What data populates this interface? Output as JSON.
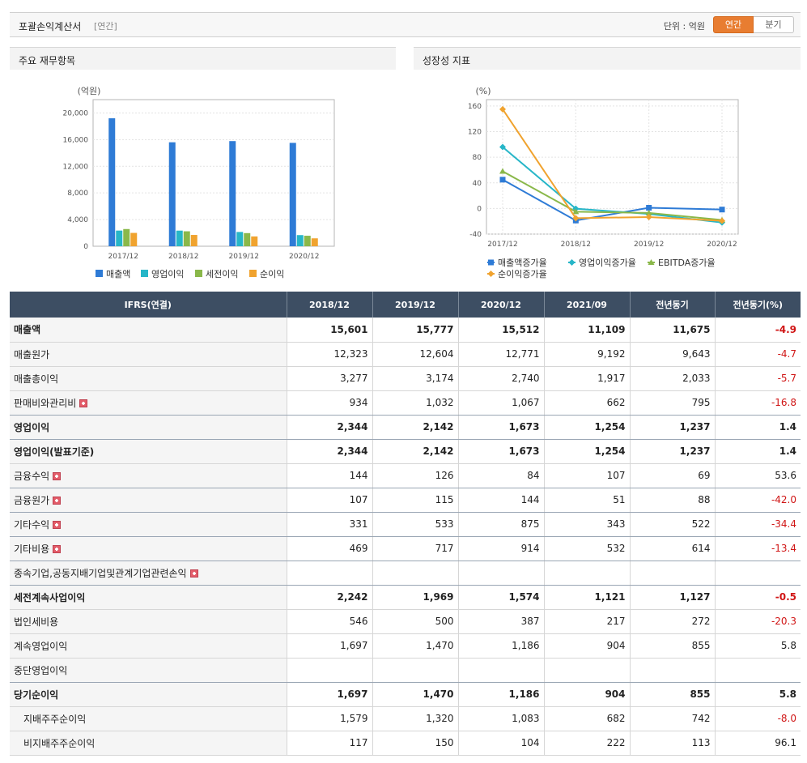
{
  "header": {
    "title": "포괄손익계산서",
    "subtitle": "[연간]",
    "unit_label": "단위 : 억원",
    "toggle": {
      "annual": "연간",
      "quarterly": "분기"
    }
  },
  "panels": {
    "left_title": "주요 재무항목",
    "right_title": "성장성 지표"
  },
  "chart_data": [
    {
      "type": "bar",
      "title": "",
      "ylabel": "(억원)",
      "categories": [
        "2017/12",
        "2018/12",
        "2019/12",
        "2020/12"
      ],
      "ylim": [
        0,
        22000
      ],
      "yticks": [
        0,
        4000,
        8000,
        12000,
        16000,
        20000
      ],
      "ytick_labels": [
        "0",
        "4,000",
        "8,000",
        "12,000",
        "16,000",
        "20,000"
      ],
      "legend_position": "bottom",
      "series": [
        {
          "name": "매출액",
          "color": "#2e7bd6",
          "values": [
            19200,
            15601,
            15777,
            15512
          ]
        },
        {
          "name": "영업이익",
          "color": "#27b6c8",
          "values": [
            2350,
            2344,
            2142,
            1673
          ]
        },
        {
          "name": "세전이익",
          "color": "#8ab84a",
          "values": [
            2580,
            2242,
            1969,
            1574
          ]
        },
        {
          "name": "순이익",
          "color": "#f0a32f",
          "values": [
            2000,
            1697,
            1470,
            1186
          ]
        }
      ]
    },
    {
      "type": "line",
      "title": "",
      "ylabel": "(%)",
      "categories": [
        "2017/12",
        "2018/12",
        "2019/12",
        "2020/12"
      ],
      "ylim": [
        -40,
        170
      ],
      "yticks": [
        -40,
        0,
        40,
        80,
        120,
        160
      ],
      "ytick_labels": [
        "-40",
        "0",
        "40",
        "80",
        "120",
        "160"
      ],
      "legend_position": "bottom",
      "series": [
        {
          "name": "매출액증가율",
          "color": "#2e7bd6",
          "marker": "square",
          "values": [
            45,
            -18.8,
            1.1,
            -1.7
          ]
        },
        {
          "name": "영업이익증가율",
          "color": "#27b6c8",
          "marker": "diamond",
          "values": [
            96,
            -0.3,
            -8.6,
            -21.9
          ]
        },
        {
          "name": "EBITDA증가율",
          "color": "#8ab84a",
          "marker": "triangle",
          "values": [
            58,
            -5,
            -7,
            -18
          ]
        },
        {
          "name": "순이익증가율",
          "color": "#f0a32f",
          "marker": "diamond",
          "values": [
            155,
            -15.1,
            -13.4,
            -19.3
          ]
        }
      ]
    }
  ],
  "table": {
    "headers": [
      "IFRS(연결)",
      "2018/12",
      "2019/12",
      "2020/12",
      "2021/09",
      "전년동기",
      "전년동기(%)"
    ],
    "rows": [
      {
        "label": "매출액",
        "values": [
          "15,601",
          "15,777",
          "15,512",
          "11,109",
          "11,675",
          "-4.9"
        ]
      },
      {
        "label": "매출원가",
        "values": [
          "12,323",
          "12,604",
          "12,771",
          "9,192",
          "9,643",
          "-4.7"
        ]
      },
      {
        "label": "매출총이익",
        "values": [
          "3,277",
          "3,174",
          "2,740",
          "1,917",
          "2,033",
          "-5.7"
        ]
      },
      {
        "label": "판매비와관리비",
        "values": [
          "934",
          "1,032",
          "1,067",
          "662",
          "795",
          "-16.8"
        ]
      },
      {
        "label": "영업이익",
        "values": [
          "2,344",
          "2,142",
          "1,673",
          "1,254",
          "1,237",
          "1.4"
        ]
      },
      {
        "label": "영업이익(발표기준)",
        "values": [
          "2,344",
          "2,142",
          "1,673",
          "1,254",
          "1,237",
          "1.4"
        ]
      },
      {
        "label": "금융수익",
        "values": [
          "144",
          "126",
          "84",
          "107",
          "69",
          "53.6"
        ]
      },
      {
        "label": "금융원가",
        "values": [
          "107",
          "115",
          "144",
          "51",
          "88",
          "-42.0"
        ]
      },
      {
        "label": "기타수익",
        "values": [
          "331",
          "533",
          "875",
          "343",
          "522",
          "-34.4"
        ]
      },
      {
        "label": "기타비용",
        "values": [
          "469",
          "717",
          "914",
          "532",
          "614",
          "-13.4"
        ]
      },
      {
        "label": "종속기업,공동지배기업및관계기업관련손익",
        "values": [
          "",
          "",
          "",
          "",
          "",
          ""
        ]
      },
      {
        "label": "세전계속사업이익",
        "values": [
          "2,242",
          "1,969",
          "1,574",
          "1,121",
          "1,127",
          "-0.5"
        ]
      },
      {
        "label": "법인세비용",
        "values": [
          "546",
          "500",
          "387",
          "217",
          "272",
          "-20.3"
        ]
      },
      {
        "label": "계속영업이익",
        "values": [
          "1,697",
          "1,470",
          "1,186",
          "904",
          "855",
          "5.8"
        ]
      },
      {
        "label": "중단영업이익",
        "values": [
          "",
          "",
          "",
          "",
          "",
          ""
        ]
      },
      {
        "label": "당기순이익",
        "values": [
          "1,697",
          "1,470",
          "1,186",
          "904",
          "855",
          "5.8"
        ]
      },
      {
        "label": "지배주주순이익",
        "values": [
          "1,579",
          "1,320",
          "1,083",
          "682",
          "742",
          "-8.0"
        ]
      },
      {
        "label": "비지배주주순이익",
        "values": [
          "117",
          "150",
          "104",
          "222",
          "113",
          "96.1"
        ]
      }
    ]
  }
}
